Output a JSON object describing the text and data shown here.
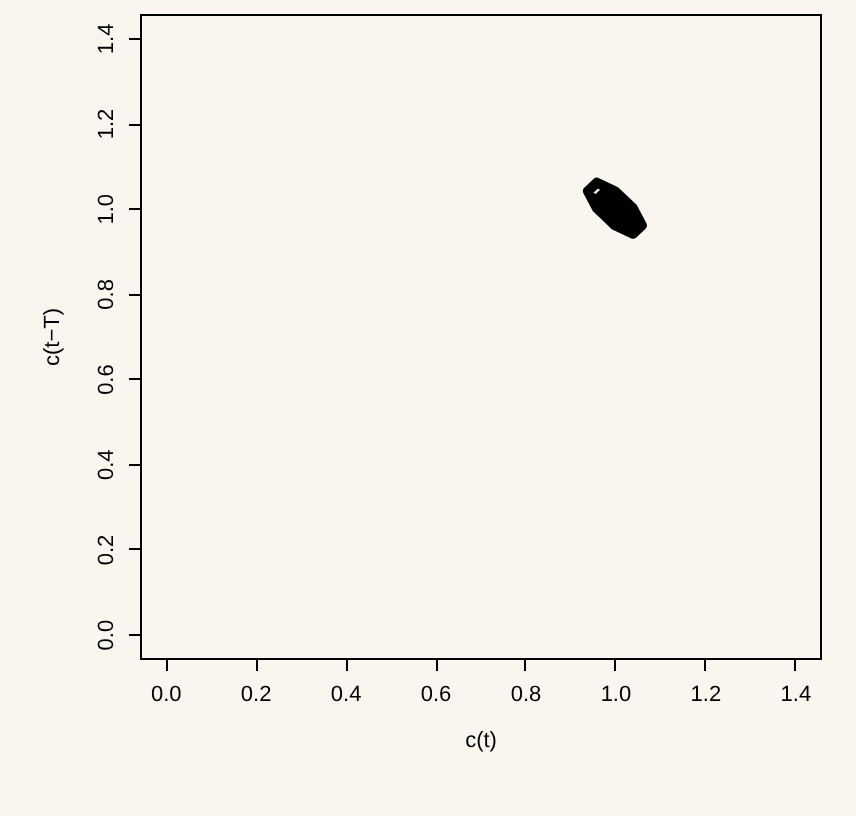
{
  "chart_data": {
    "type": "line",
    "xlabel": "c(t)",
    "ylabel": "c(t−T)",
    "xlim": [
      -0.056,
      1.456
    ],
    "ylim": [
      -0.056,
      1.456
    ],
    "xticks": [
      {
        "value": 0,
        "label": "0.0"
      },
      {
        "value": 0.2,
        "label": "0.2"
      },
      {
        "value": 0.4,
        "label": "0.4"
      },
      {
        "value": 0.6,
        "label": "0.6"
      },
      {
        "value": 0.8,
        "label": "0.8"
      },
      {
        "value": 1,
        "label": "1.0"
      },
      {
        "value": 1.2,
        "label": "1.2"
      },
      {
        "value": 1.4,
        "label": "1.4"
      }
    ],
    "yticks": [
      {
        "value": 0,
        "label": "0.0"
      },
      {
        "value": 0.2,
        "label": "0.2"
      },
      {
        "value": 0.4,
        "label": "0.4"
      },
      {
        "value": 0.6,
        "label": "0.6"
      },
      {
        "value": 0.8,
        "label": "0.8"
      },
      {
        "value": 1,
        "label": "1.0"
      },
      {
        "value": 1.2,
        "label": "1.2"
      },
      {
        "value": 1.4,
        "label": "1.4"
      }
    ],
    "grid": false,
    "series": [
      {
        "color": "#000000",
        "x": [
          1.05,
          1.04,
          1.02,
          1.0,
          0.98,
          0.96,
          0.95,
          0.94,
          0.95,
          0.96,
          0.98,
          1.0,
          1.02,
          1.04,
          1.05,
          1.06,
          1.05,
          1.03,
          1.02,
          1.01,
          1.0,
          0.99,
          0.98,
          0.97,
          0.96,
          0.97,
          0.98,
          0.99,
          1.0,
          1.01,
          1.02,
          1.03,
          1.04,
          1.02,
          1.0,
          0.98,
          1.0,
          1.01,
          1.0
        ],
        "values": [
          0.95,
          0.94,
          0.95,
          0.96,
          0.98,
          1.0,
          1.02,
          1.04,
          1.05,
          1.06,
          1.05,
          1.04,
          1.02,
          1.0,
          0.98,
          0.96,
          0.95,
          0.97,
          0.96,
          0.97,
          0.98,
          0.99,
          1.0,
          1.01,
          1.02,
          1.03,
          1.04,
          1.03,
          1.02,
          1.01,
          1.0,
          0.99,
          0.98,
          0.98,
          0.99,
          1.02,
          1.01,
          1.0,
          1.0
        ]
      }
    ]
  }
}
